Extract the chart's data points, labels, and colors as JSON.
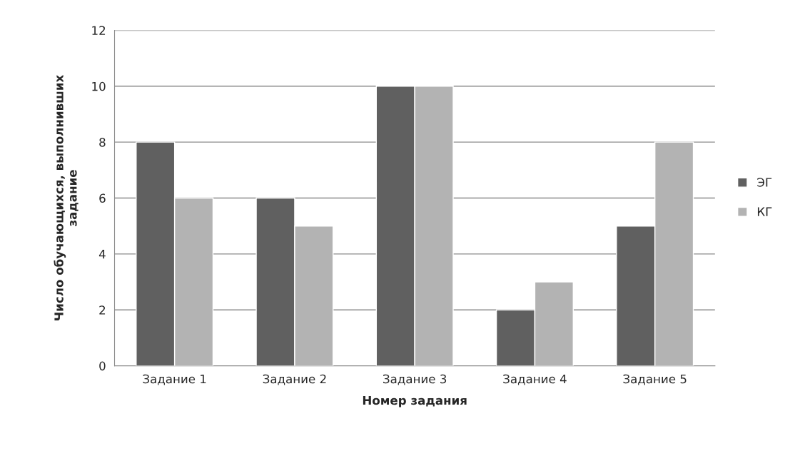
{
  "chart_data": {
    "type": "bar",
    "xlabel": "Номер задания",
    "ylabel": "Число обучающихся, выполнивших\nзадание",
    "categories": [
      "Задание 1",
      "Задание 2",
      "Задание 3",
      "Задание 4",
      "Задание 5"
    ],
    "series": [
      {
        "name": "ЭГ",
        "color": "#606060",
        "values": [
          8,
          6,
          10,
          2,
          5
        ]
      },
      {
        "name": "КГ",
        "color": "#b3b3b3",
        "values": [
          6,
          5,
          10,
          3,
          8
        ]
      }
    ],
    "ylim": [
      0,
      12
    ],
    "yticks": [
      0,
      2,
      4,
      6,
      8,
      10,
      12
    ],
    "grid": "y",
    "legend": "right"
  }
}
